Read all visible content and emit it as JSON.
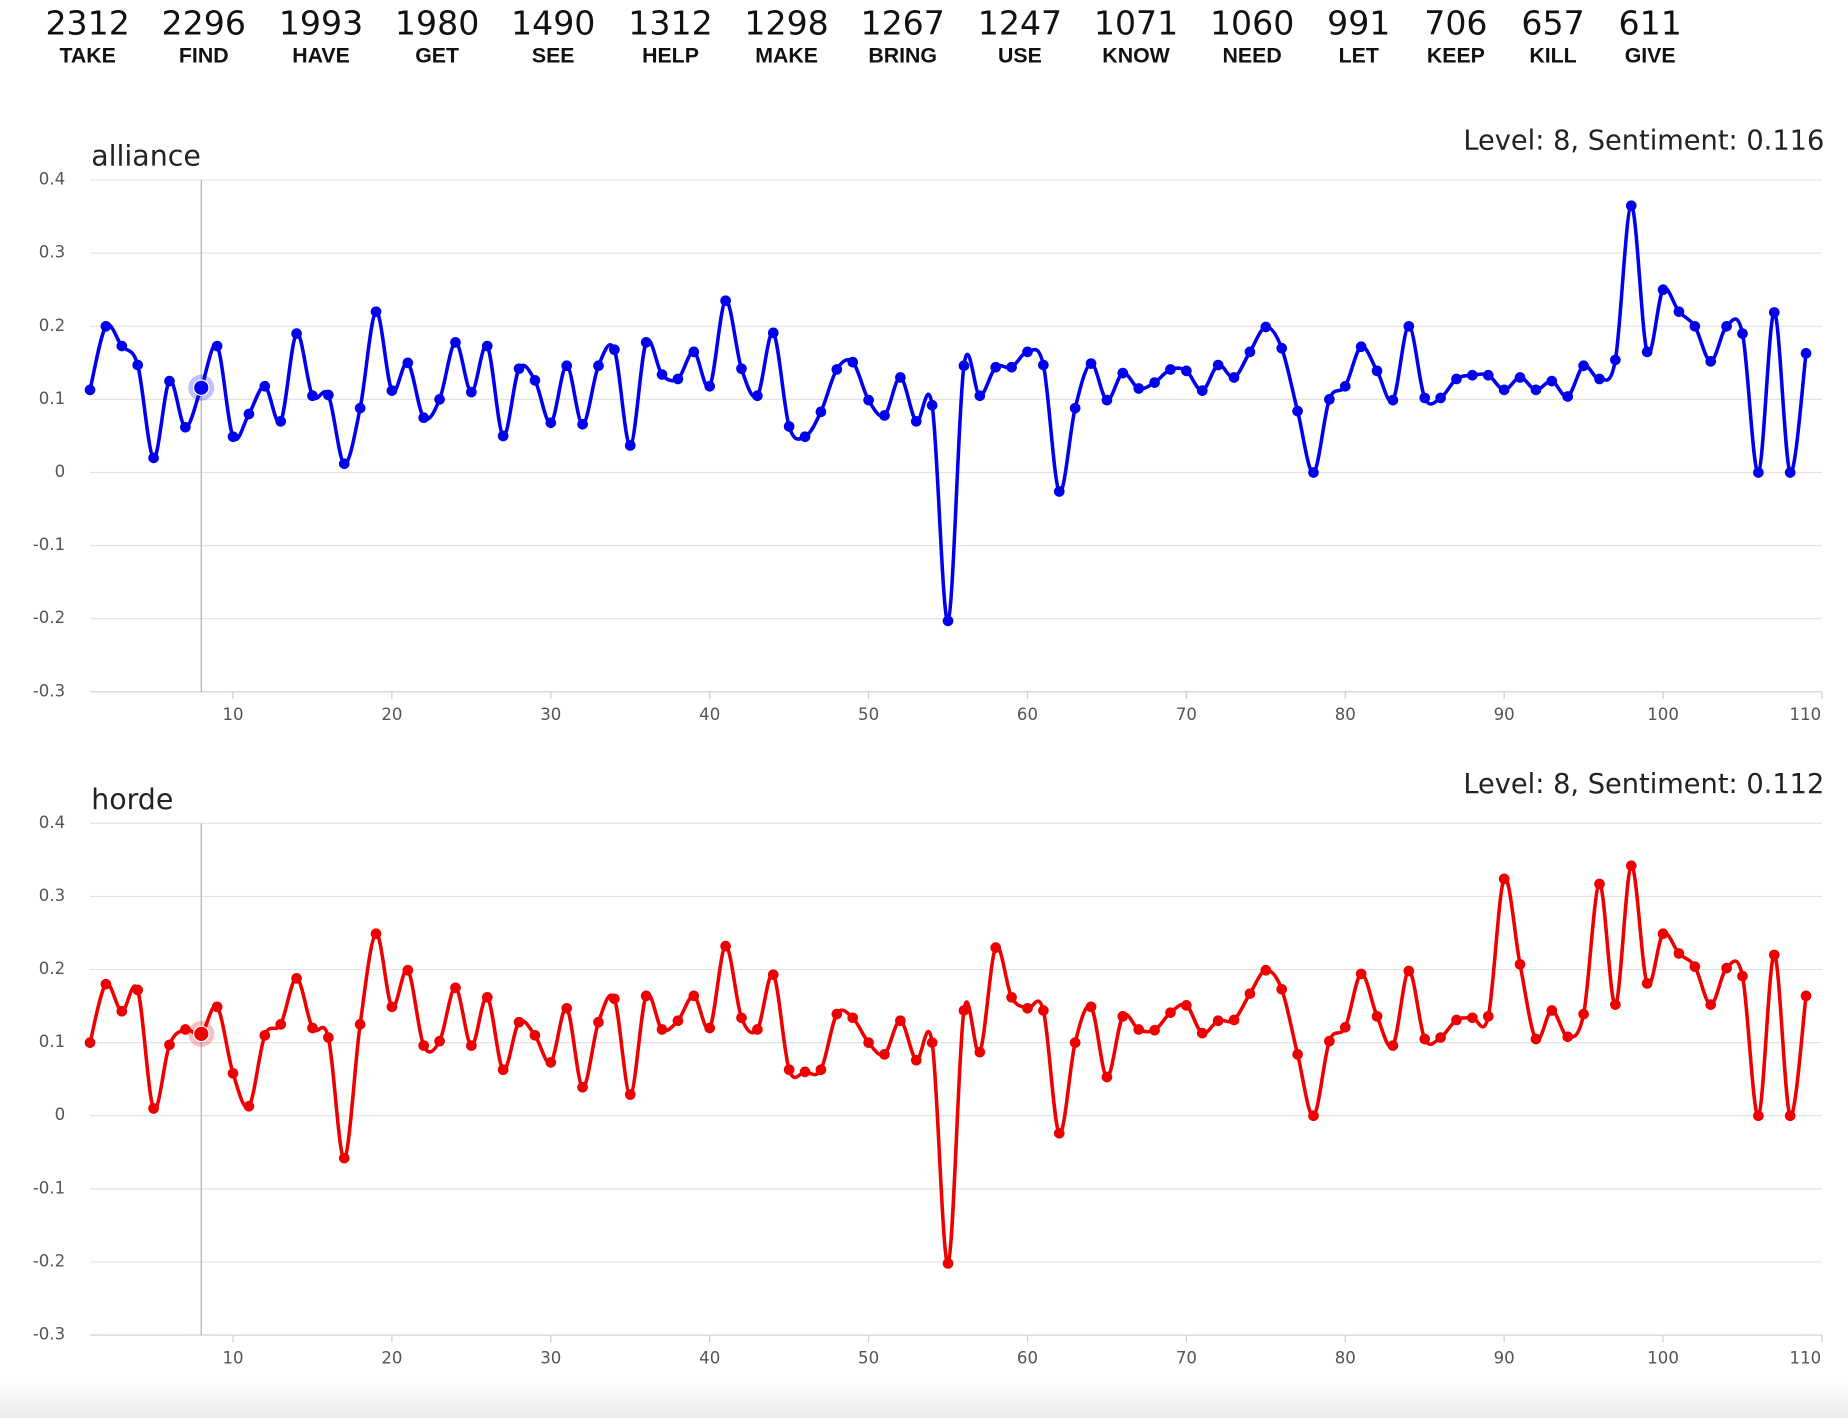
{
  "verbs": [
    {
      "count": "2312",
      "word": "TAKE"
    },
    {
      "count": "2296",
      "word": "FIND"
    },
    {
      "count": "1993",
      "word": "HAVE"
    },
    {
      "count": "1980",
      "word": "GET"
    },
    {
      "count": "1490",
      "word": "SEE"
    },
    {
      "count": "1312",
      "word": "HELP"
    },
    {
      "count": "1298",
      "word": "MAKE"
    },
    {
      "count": "1267",
      "word": "BRING"
    },
    {
      "count": "1247",
      "word": "USE"
    },
    {
      "count": "1071",
      "word": "KNOW"
    },
    {
      "count": "1060",
      "word": "NEED"
    },
    {
      "count": "991",
      "word": "LET"
    },
    {
      "count": "706",
      "word": "KEEP"
    },
    {
      "count": "657",
      "word": "KILL"
    },
    {
      "count": "611",
      "word": "GIVE"
    }
  ],
  "chart_data": [
    {
      "type": "line",
      "title": "alliance",
      "hover_label": "Level: 8, Sentiment: 0.116",
      "crosshair_x": 8,
      "xlim": [
        1,
        110
      ],
      "ylim": [
        -0.3,
        0.4
      ],
      "xticks": [
        10,
        20,
        30,
        40,
        50,
        60,
        70,
        80,
        90,
        100,
        110
      ],
      "yticks": [
        -0.3,
        -0.2,
        -0.1,
        0,
        0.1,
        0.2,
        0.3,
        0.4
      ],
      "grid": true,
      "x": [
        1,
        2,
        3,
        4,
        5,
        6,
        7,
        8,
        9,
        10,
        11,
        12,
        13,
        14,
        15,
        16,
        17,
        18,
        19,
        20,
        21,
        22,
        23,
        24,
        25,
        26,
        27,
        28,
        29,
        30,
        31,
        32,
        33,
        34,
        35,
        36,
        37,
        38,
        39,
        40,
        41,
        42,
        43,
        44,
        45,
        46,
        47,
        48,
        49,
        50,
        51,
        52,
        53,
        54,
        55,
        56,
        57,
        58,
        59,
        60,
        61,
        62,
        63,
        64,
        65,
        66,
        67,
        68,
        69,
        70,
        71,
        72,
        73,
        74,
        75,
        76,
        77,
        78,
        79,
        80,
        81,
        82,
        83,
        84,
        85,
        86,
        87,
        88,
        89,
        90,
        91,
        92,
        93,
        94,
        95,
        96,
        97,
        98,
        99,
        100,
        101,
        102,
        103,
        104,
        105,
        106,
        107,
        108,
        109
      ],
      "series": [
        {
          "name": "alliance",
          "color": "#0000ee",
          "values": [
            0.113,
            0.2,
            0.173,
            0.147,
            0.02,
            0.125,
            0.062,
            0.116,
            0.173,
            0.049,
            0.08,
            0.118,
            0.07,
            0.19,
            0.105,
            0.106,
            0.012,
            0.088,
            0.22,
            0.112,
            0.15,
            0.075,
            0.1,
            0.178,
            0.11,
            0.173,
            0.05,
            0.142,
            0.126,
            0.068,
            0.146,
            0.066,
            0.146,
            0.168,
            0.037,
            0.178,
            0.134,
            0.128,
            0.165,
            0.118,
            0.235,
            0.142,
            0.105,
            0.191,
            0.063,
            0.049,
            0.083,
            0.141,
            0.151,
            0.099,
            0.078,
            0.13,
            0.07,
            0.092,
            -0.203,
            0.146,
            0.105,
            0.144,
            0.144,
            0.165,
            0.147,
            -0.026,
            0.088,
            0.149,
            0.099,
            0.136,
            0.115,
            0.123,
            0.141,
            0.139,
            0.112,
            0.147,
            0.13,
            0.165,
            0.199,
            0.17,
            0.084,
            0,
            0.1,
            0.118,
            0.172,
            0.139,
            0.099,
            0.2,
            0.102,
            0.102,
            0.128,
            0.133,
            0.133,
            0.113,
            0.13,
            0.113,
            0.125,
            0.104,
            0.146,
            0.128,
            0.154,
            0.365,
            0.165,
            0.25,
            0.22,
            0.2,
            0.152,
            0.2,
            0.19,
            0,
            0.219,
            0,
            0.163
          ]
        }
      ]
    },
    {
      "type": "line",
      "title": "horde",
      "hover_label": "Level: 8, Sentiment: 0.112",
      "crosshair_x": 8,
      "xlim": [
        1,
        110
      ],
      "ylim": [
        -0.3,
        0.4
      ],
      "xticks": [
        10,
        20,
        30,
        40,
        50,
        60,
        70,
        80,
        90,
        100,
        110
      ],
      "yticks": [
        -0.3,
        -0.2,
        -0.1,
        0,
        0.1,
        0.2,
        0.3,
        0.4
      ],
      "grid": true,
      "x": [
        1,
        2,
        3,
        4,
        5,
        6,
        7,
        8,
        9,
        10,
        11,
        12,
        13,
        14,
        15,
        16,
        17,
        18,
        19,
        20,
        21,
        22,
        23,
        24,
        25,
        26,
        27,
        28,
        29,
        30,
        31,
        32,
        33,
        34,
        35,
        36,
        37,
        38,
        39,
        40,
        41,
        42,
        43,
        44,
        45,
        46,
        47,
        48,
        49,
        50,
        51,
        52,
        53,
        54,
        55,
        56,
        57,
        58,
        59,
        60,
        61,
        62,
        63,
        64,
        65,
        66,
        67,
        68,
        69,
        70,
        71,
        72,
        73,
        74,
        75,
        76,
        77,
        78,
        79,
        80,
        81,
        82,
        83,
        84,
        85,
        86,
        87,
        88,
        89,
        90,
        91,
        92,
        93,
        94,
        95,
        96,
        97,
        98,
        99,
        100,
        101,
        102,
        103,
        104,
        105,
        106,
        107,
        108,
        109
      ],
      "series": [
        {
          "name": "horde",
          "color": "#ee0000",
          "values": [
            0.1,
            0.18,
            0.143,
            0.172,
            0.01,
            0.097,
            0.118,
            0.112,
            0.149,
            0.058,
            0.013,
            0.11,
            0.125,
            0.188,
            0.12,
            0.107,
            -0.058,
            0.125,
            0.249,
            0.149,
            0.199,
            0.096,
            0.102,
            0.175,
            0.096,
            0.162,
            0.063,
            0.128,
            0.11,
            0.073,
            0.147,
            0.039,
            0.128,
            0.16,
            0.029,
            0.164,
            0.118,
            0.13,
            0.164,
            0.12,
            0.232,
            0.134,
            0.118,
            0.193,
            0.063,
            0.06,
            0.063,
            0.139,
            0.134,
            0.1,
            0.084,
            0.13,
            0.076,
            0.1,
            -0.202,
            0.144,
            0.087,
            0.23,
            0.162,
            0.147,
            0.144,
            -0.024,
            0.1,
            0.149,
            0.053,
            0.136,
            0.118,
            0.117,
            0.141,
            0.151,
            0.113,
            0.13,
            0.131,
            0.167,
            0.199,
            0.173,
            0.084,
            0,
            0.102,
            0.121,
            0.194,
            0.136,
            0.096,
            0.198,
            0.105,
            0.107,
            0.131,
            0.134,
            0.136,
            0.324,
            0.207,
            0.105,
            0.144,
            0.108,
            0.139,
            0.317,
            0.152,
            0.342,
            0.181,
            0.249,
            0.222,
            0.204,
            0.152,
            0.202,
            0.191,
            0,
            0.22,
            0,
            0.164
          ]
        }
      ]
    }
  ]
}
